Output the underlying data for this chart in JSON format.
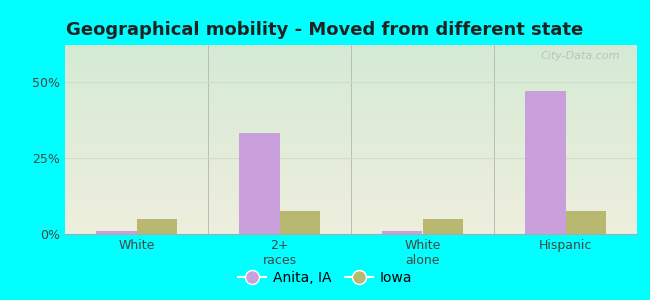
{
  "title": "Geographical mobility - Moved from different state",
  "categories": [
    "White",
    "2+\nraces",
    "White\nalone",
    "Hispanic"
  ],
  "anita_values": [
    1.0,
    33.0,
    1.0,
    47.0
  ],
  "iowa_values": [
    5.0,
    7.5,
    5.0,
    7.5
  ],
  "anita_color": "#c9a0dc",
  "iowa_color": "#b8b870",
  "ylim": [
    0,
    62
  ],
  "yticks": [
    0,
    25,
    50
  ],
  "ytick_labels": [
    "0%",
    "25%",
    "50%"
  ],
  "background_color": "#00ffff",
  "grad_top": "#d4ead4",
  "grad_bottom": "#eeeedd",
  "bar_width": 0.28,
  "legend_labels": [
    "Anita, IA",
    "Iowa"
  ],
  "title_fontsize": 13,
  "axis_label_fontsize": 9,
  "legend_fontsize": 10,
  "separator_color": "#bbbbbb",
  "grid_color": "#ccddcc",
  "watermark": "City-Data.com",
  "watermark_color": "#aaaaaa"
}
